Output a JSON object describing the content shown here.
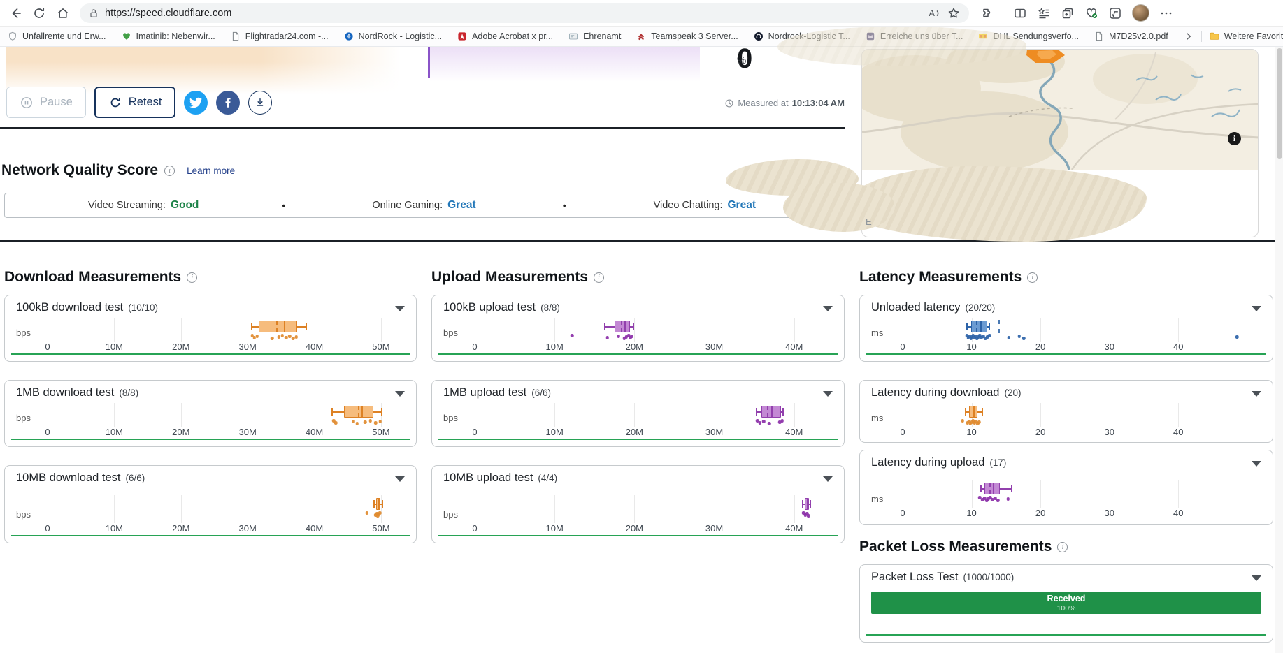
{
  "browser": {
    "url": "https://speed.cloudflare.com",
    "bookmarks": [
      {
        "label": "Unfallrente und Erw...",
        "icon": "shield-icon"
      },
      {
        "label": "Imatinib: Nebenwir...",
        "icon": "heart-icon"
      },
      {
        "label": "Flightradar24.com -...",
        "icon": "page-icon"
      },
      {
        "label": "NordRock - Logistic...",
        "icon": "globe-icon"
      },
      {
        "label": "Adobe Acrobat x pr...",
        "icon": "adobe-icon"
      },
      {
        "label": "Ehrenamt",
        "icon": "card-icon"
      },
      {
        "label": "Teamspeak 3 Server...",
        "icon": "teamspeak-icon"
      },
      {
        "label": "Nordrock-Logistic T...",
        "icon": "headset-icon"
      },
      {
        "label": "Erreiche uns über T...",
        "icon": "crown-icon"
      },
      {
        "label": "DHL Sendungsverfo...",
        "icon": "dhl-icon"
      },
      {
        "label": "M7D25v2.0.pdf",
        "icon": "pdf-icon"
      }
    ],
    "more_favorites_label": "Weitere Favoriten"
  },
  "header": {
    "percent_value": "0",
    "percent_unit": "%",
    "pause_label": "Pause",
    "retest_label": "Retest",
    "measured_label": "Measured at",
    "measured_time": "10:13:04 AM"
  },
  "quality": {
    "heading": "Network Quality Score",
    "learn_more_label": "Learn more",
    "bullet": "•",
    "items": [
      {
        "label": "Video Streaming:",
        "value": "Good",
        "color": "#1d8348"
      },
      {
        "label": "Online Gaming:",
        "value": "Great",
        "color": "#2277b8"
      },
      {
        "label": "Video Chatting:",
        "value": "Great",
        "color": "#2277b8"
      }
    ]
  },
  "sections": {
    "download": {
      "heading": "Download Measurements"
    },
    "upload": {
      "heading": "Upload Measurements"
    },
    "latency": {
      "heading": "Latency Measurements"
    },
    "packet": {
      "heading": "Packet Loss Measurements"
    }
  },
  "map": {
    "attribution_fragment": "E"
  },
  "colors": {
    "accent_navy": "#16325c",
    "green_line": "#27a355",
    "divider": "#1b2026"
  },
  "chart_data": [
    {
      "id": "download-100kb",
      "section": "download",
      "type": "boxplot",
      "title": "100kB download test",
      "count": "(10/10)",
      "unit": "bps",
      "axis_max": 52,
      "right_inset": 15,
      "fill": "#f6bc7d",
      "stroke": "#dd8124",
      "dot": "#e08a2e",
      "ticks": [
        {
          "v": 0,
          "l": "0"
        },
        {
          "v": 10,
          "l": "10M"
        },
        {
          "v": 20,
          "l": "20M"
        },
        {
          "v": 30,
          "l": "30M"
        },
        {
          "v": 40,
          "l": "40M"
        },
        {
          "v": 50,
          "l": "50M"
        }
      ],
      "box": {
        "lo": 30.6,
        "q1": 31.7,
        "m_dash": 34.3,
        "m": 35.4,
        "q3": 37.4,
        "hi": 38.8
      },
      "points": [
        30.7,
        31.0,
        31.4,
        33.7,
        34.7,
        35.2,
        35.8,
        36.3,
        36.8,
        37.3
      ],
      "underline": true
    },
    {
      "id": "download-1mb",
      "section": "download",
      "type": "boxplot",
      "title": "1MB download test",
      "count": "(8/8)",
      "unit": "bps",
      "axis_max": 52,
      "right_inset": 15,
      "fill": "#f6bc7d",
      "stroke": "#dd8124",
      "dot": "#e08a2e",
      "ticks": [
        {
          "v": 0,
          "l": "0"
        },
        {
          "v": 10,
          "l": "10M"
        },
        {
          "v": 20,
          "l": "20M"
        },
        {
          "v": 30,
          "l": "30M"
        },
        {
          "v": 40,
          "l": "40M"
        },
        {
          "v": 50,
          "l": "50M"
        }
      ],
      "box": {
        "lo": 42.7,
        "q1": 44.4,
        "m_dash": 46.6,
        "m": 47.1,
        "q3": 48.9,
        "hi": 50.1
      },
      "points": [
        42.9,
        43.2,
        45.9,
        46.4,
        47.6,
        48.4,
        49.2,
        49.9
      ],
      "underline": true
    },
    {
      "id": "download-10mb",
      "section": "download",
      "type": "boxplot",
      "tall": true,
      "title": "10MB download test",
      "count": "(6/6)",
      "unit": "bps",
      "axis_max": 52,
      "right_inset": 15,
      "fill": "#f6bc7d",
      "stroke": "#dd8124",
      "dot": "#e08a2e",
      "ticks": [
        {
          "v": 0,
          "l": "0"
        },
        {
          "v": 10,
          "l": "10M"
        },
        {
          "v": 20,
          "l": "20M"
        },
        {
          "v": 30,
          "l": "30M"
        },
        {
          "v": 40,
          "l": "40M"
        },
        {
          "v": 50,
          "l": "50M"
        }
      ],
      "box": {
        "lo": 49.0,
        "q1": 49.3,
        "m": 49.6,
        "q3": 49.9,
        "hi": 50.2
      },
      "points": [
        47.9,
        49.2,
        49.4,
        49.5,
        49.6,
        49.8
      ],
      "underline": true
    },
    {
      "id": "upload-100kb",
      "section": "upload",
      "type": "boxplot",
      "title": "100kB upload test",
      "count": "(8/8)",
      "unit": "bps",
      "axis_max": 43,
      "right_inset": 21,
      "fill": "#c389d4",
      "stroke": "#9240ad",
      "dot": "#8b2fa8",
      "ticks": [
        {
          "v": 0,
          "l": "0"
        },
        {
          "v": 10,
          "l": "10M"
        },
        {
          "v": 20,
          "l": "20M"
        },
        {
          "v": 30,
          "l": "30M"
        },
        {
          "v": 40,
          "l": "40M"
        }
      ],
      "box": {
        "lo": 16.3,
        "q1": 17.5,
        "m_dash": 18.3,
        "m": 18.7,
        "q3": 19.4,
        "hi": 19.9
      },
      "points": [
        12.2,
        16.6,
        18.0,
        18.7,
        19.0,
        19.3,
        19.5,
        19.7
      ],
      "underline": true
    },
    {
      "id": "upload-1mb",
      "section": "upload",
      "type": "boxplot",
      "title": "1MB upload test",
      "count": "(6/6)",
      "unit": "bps",
      "axis_max": 43,
      "right_inset": 21,
      "fill": "#c389d4",
      "stroke": "#9240ad",
      "dot": "#8b2fa8",
      "ticks": [
        {
          "v": 0,
          "l": "0"
        },
        {
          "v": 10,
          "l": "10M"
        },
        {
          "v": 20,
          "l": "20M"
        },
        {
          "v": 30,
          "l": "30M"
        },
        {
          "v": 40,
          "l": "40M"
        }
      ],
      "box": {
        "lo": 35.3,
        "q1": 35.9,
        "m_dash": 36.6,
        "m": 37.1,
        "q3": 38.4,
        "hi": 38.6
      },
      "points": [
        35.4,
        35.7,
        36.2,
        36.9,
        38.2,
        38.5
      ],
      "underline": true
    },
    {
      "id": "upload-10mb",
      "section": "upload",
      "type": "boxplot",
      "tall": true,
      "title": "10MB upload test",
      "count": "(4/4)",
      "unit": "bps",
      "axis_max": 43,
      "right_inset": 21,
      "fill": "#c389d4",
      "stroke": "#9240ad",
      "dot": "#8b2fa8",
      "ticks": [
        {
          "v": 0,
          "l": "0"
        },
        {
          "v": 10,
          "l": "10M"
        },
        {
          "v": 20,
          "l": "20M"
        },
        {
          "v": 30,
          "l": "30M"
        },
        {
          "v": 40,
          "l": "40M"
        }
      ],
      "box": {
        "lo": 41.1,
        "q1": 41.3,
        "m": 41.6,
        "q3": 41.9,
        "hi": 42.0
      },
      "points": [
        41.2,
        41.4,
        41.6,
        41.8
      ],
      "underline": true
    },
    {
      "id": "latency-unloaded",
      "section": "latency",
      "type": "boxplot",
      "title": "Unloaded latency",
      "count": "(20/20)",
      "unit": "ms",
      "axis_max": 49,
      "right_inset": 30,
      "fill": "#6b9bd2",
      "stroke": "#2c63a8",
      "dot": "#2c63a8",
      "dash_at": 13.9,
      "ticks": [
        {
          "v": 0,
          "l": "0"
        },
        {
          "v": 10,
          "l": "10"
        },
        {
          "v": 20,
          "l": "20"
        },
        {
          "v": 30,
          "l": "30"
        },
        {
          "v": 40,
          "l": "40"
        }
      ],
      "box": {
        "lo": 9.3,
        "q1": 9.9,
        "m_dash": 10.7,
        "m": 11.3,
        "q3": 12.3,
        "hi": 12.6
      },
      "points": [
        9.3,
        9.5,
        9.7,
        9.9,
        10.0,
        10.2,
        10.4,
        10.6,
        10.8,
        11.0,
        11.2,
        11.4,
        11.7,
        12.0,
        12.3,
        12.6,
        15.4,
        16.9,
        17.6,
        48.5
      ],
      "underline": true
    },
    {
      "id": "latency-download",
      "section": "latency",
      "type": "boxplot",
      "title": "Latency during download",
      "count": "(20)",
      "unit": "ms",
      "axis_max": 49,
      "right_inset": 30,
      "fill": "#f6bc7d",
      "stroke": "#dd8124",
      "dot": "#e08a2e",
      "ticks": [
        {
          "v": 0,
          "l": "0"
        },
        {
          "v": 10,
          "l": "10"
        },
        {
          "v": 20,
          "l": "20"
        },
        {
          "v": 30,
          "l": "30"
        },
        {
          "v": 40,
          "l": "40"
        }
      ],
      "box": {
        "lo": 9.1,
        "q1": 9.6,
        "m": 10.2,
        "q3": 10.9,
        "hi": 11.6
      },
      "points": [
        8.7,
        9.4,
        9.6,
        9.8,
        10.0,
        10.2,
        10.4,
        10.6,
        10.9,
        11.1
      ],
      "underline": false
    },
    {
      "id": "latency-upload",
      "section": "latency",
      "type": "boxplot",
      "tall": true,
      "title": "Latency during upload",
      "count": "(17)",
      "unit": "ms",
      "axis_max": 49,
      "right_inset": 30,
      "fill": "#c389d4",
      "stroke": "#9240ad",
      "dot": "#8b2fa8",
      "ticks": [
        {
          "v": 0,
          "l": "0"
        },
        {
          "v": 10,
          "l": "10"
        },
        {
          "v": 20,
          "l": "20"
        },
        {
          "v": 30,
          "l": "30"
        },
        {
          "v": 40,
          "l": "40"
        }
      ],
      "box": {
        "lo": 11.4,
        "q1": 11.9,
        "m_dash": 12.6,
        "m": 13.1,
        "q3": 14.1,
        "hi": 15.8
      },
      "points": [
        11.2,
        11.6,
        11.9,
        12.2,
        12.4,
        12.7,
        13.0,
        13.4,
        13.8,
        15.3
      ],
      "underline": false
    },
    {
      "id": "packet-loss",
      "section": "packet",
      "type": "bar",
      "tall": true,
      "title": "Packet Loss Test",
      "count": "(1000/1000)",
      "bar_label": "Received",
      "bar_value": "100%",
      "bar_color": "#1f9148",
      "underline": true
    }
  ]
}
